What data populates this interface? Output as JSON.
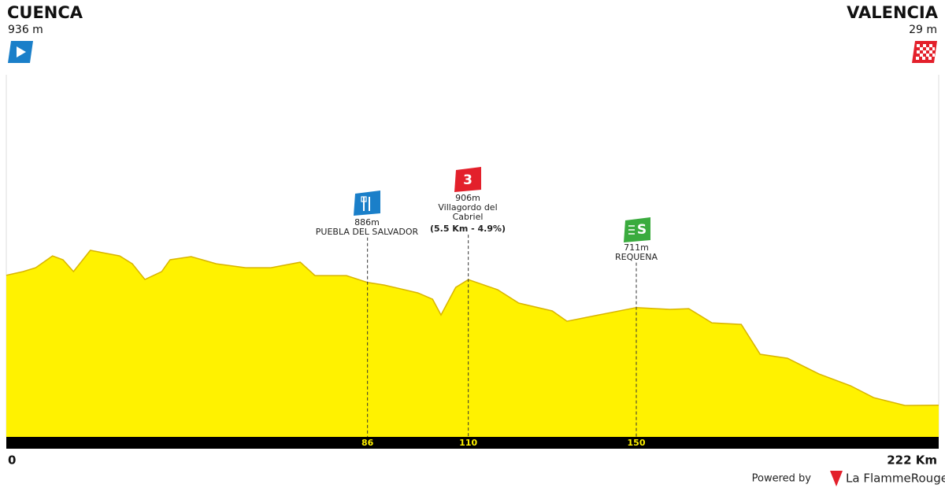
{
  "chart_data": {
    "type": "area",
    "start": {
      "name": "CUENCA",
      "elevation_label": "936 m"
    },
    "finish": {
      "name": "VALENCIA",
      "elevation_label": "29 m"
    },
    "x": [
      0,
      4,
      7,
      11,
      13.5,
      16,
      20,
      27,
      30,
      33,
      37,
      39,
      44,
      50,
      57,
      63,
      70,
      73.5,
      81,
      86,
      90,
      98,
      101.5,
      103.5,
      107,
      110,
      117,
      122,
      130,
      133.5,
      141,
      150,
      158,
      162.5,
      168,
      175,
      179.5,
      186,
      193.5,
      201,
      206.5,
      214,
      222
    ],
    "values": [
      936,
      962,
      989,
      1071,
      1044,
      962,
      1110,
      1071,
      1016,
      907,
      962,
      1044,
      1066,
      1016,
      989,
      989,
      1027,
      934,
      934,
      886,
      868,
      813,
      769,
      659,
      852,
      906,
      835,
      742,
      687,
      615,
      659,
      711,
      698,
      703,
      604,
      593,
      385,
      357,
      247,
      165,
      82,
      27,
      29
    ],
    "color": "#fff200",
    "xlim": [
      0,
      222
    ],
    "ylim": [
      -192,
      2308
    ],
    "xticks": [
      0,
      {
        "value": 222,
        "label": "222 Km"
      }
    ],
    "markers": [
      {
        "km": 86,
        "elevation": 886,
        "elevation_label": "886m",
        "name": "PUEBLA DEL SALVADOR",
        "color": "#1a7fc9"
      },
      {
        "km": 110,
        "elevation": 906,
        "elevation_label": "906m",
        "name": "Villagordo del Cabriel",
        "climb": "(5.5 Km - 4.9%)",
        "badge": "3",
        "color": "#e3202b"
      },
      {
        "km": 150,
        "elevation": 711,
        "elevation_label": "711m",
        "name": "REQUENA",
        "badge": "S",
        "color": "#3aab3e"
      }
    ],
    "credit": "Powered by",
    "brand": "La FlammeRouge"
  }
}
